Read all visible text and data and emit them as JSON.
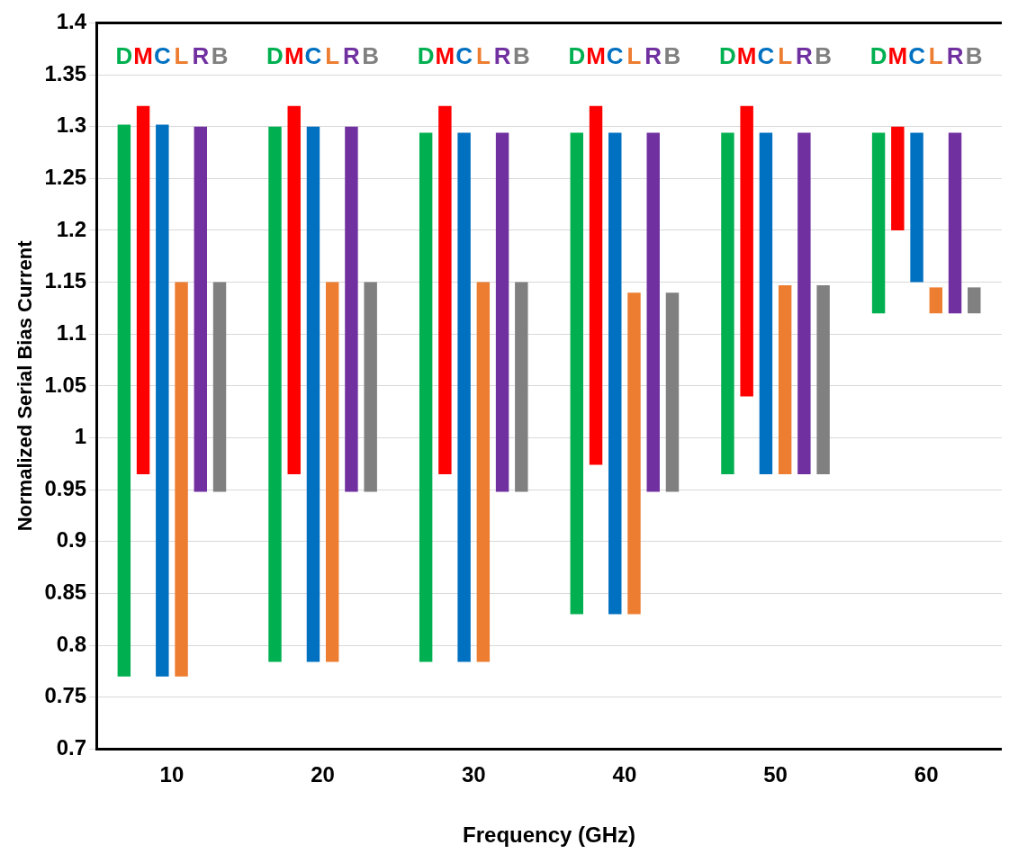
{
  "chart_data": {
    "type": "bar",
    "xlabel": "Frequency (GHz)",
    "ylabel": "Normalized Serial Bias Current",
    "categories": [
      "10",
      "20",
      "30",
      "40",
      "50",
      "60"
    ],
    "series": [
      {
        "name": "D",
        "color": "#00b050",
        "base": [
          0.77,
          0.784,
          0.784,
          0.83,
          0.965,
          1.12
        ],
        "values": [
          0.532,
          0.516,
          0.51,
          0.464,
          0.329,
          0.174
        ]
      },
      {
        "name": "M",
        "color": "#ff0000",
        "base": [
          0.965,
          0.965,
          0.965,
          0.974,
          1.04,
          1.2
        ],
        "values": [
          0.355,
          0.355,
          0.355,
          0.346,
          0.28,
          0.1
        ]
      },
      {
        "name": "C",
        "color": "#0070c0",
        "base": [
          0.77,
          0.784,
          0.784,
          0.83,
          0.965,
          1.15
        ],
        "values": [
          0.532,
          0.516,
          0.51,
          0.464,
          0.329,
          0.144
        ]
      },
      {
        "name": "L",
        "color": "#ed7d31",
        "base": [
          0.77,
          0.784,
          0.784,
          0.83,
          0.965,
          1.12
        ],
        "values": [
          0.38,
          0.366,
          0.366,
          0.31,
          0.182,
          0.025
        ]
      },
      {
        "name": "R",
        "color": "#7030a0",
        "base": [
          0.948,
          0.948,
          0.948,
          0.948,
          0.965,
          1.12
        ],
        "values": [
          0.352,
          0.352,
          0.346,
          0.346,
          0.329,
          0.174
        ]
      },
      {
        "name": "B",
        "color": "#808080",
        "base": [
          0.948,
          0.948,
          0.948,
          0.948,
          0.965,
          1.12
        ],
        "values": [
          0.202,
          0.202,
          0.202,
          0.192,
          0.182,
          0.025
        ]
      }
    ],
    "ylim": [
      0.7,
      1.4
    ],
    "yticks": [
      0.7,
      0.75,
      0.8,
      0.85,
      0.9,
      0.95,
      1,
      1.05,
      1.1,
      1.15,
      1.2,
      1.25,
      1.3,
      1.35,
      1.4
    ],
    "grid": "y",
    "legend": false
  }
}
